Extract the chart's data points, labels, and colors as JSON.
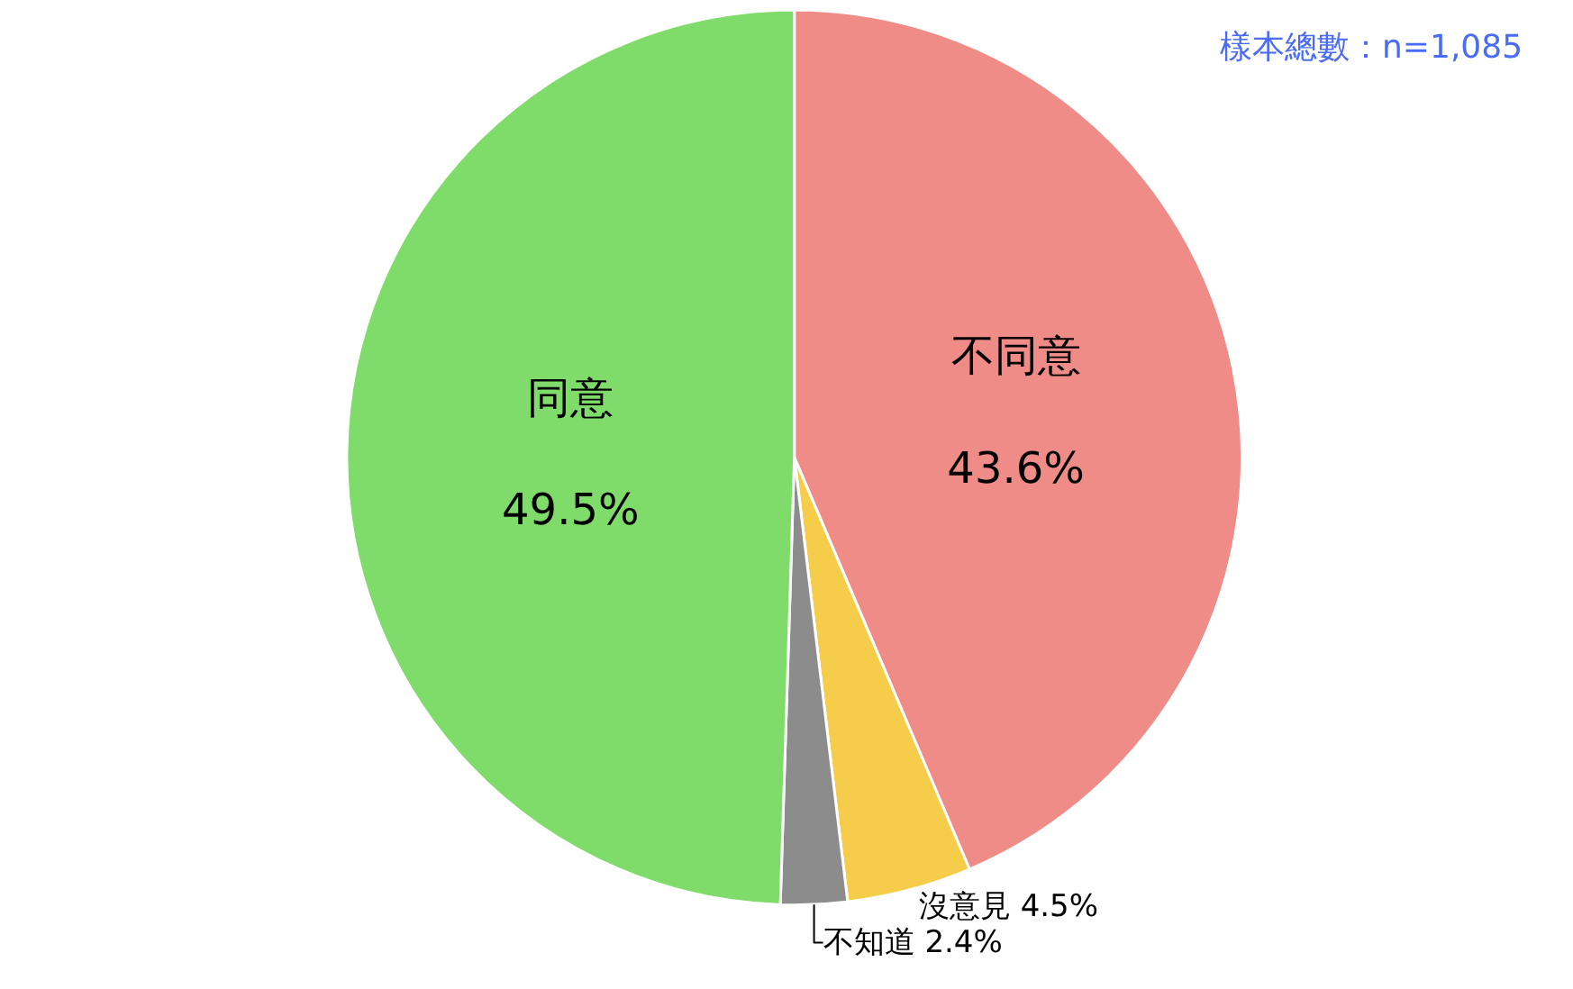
{
  "chart_data": {
    "type": "pie",
    "categories": [
      "不同意",
      "沒意見",
      "不知道",
      "同意"
    ],
    "values": [
      43.6,
      4.5,
      2.4,
      49.5
    ],
    "value_labels": [
      "43.6%",
      "4.5%",
      "2.4%",
      "49.5%"
    ],
    "colors": [
      "#f08c88",
      "#f5cd4b",
      "#8c8c8c",
      "#80dc6a"
    ],
    "annotations": [
      "樣本總數：n=1,085"
    ],
    "legend": false
  }
}
